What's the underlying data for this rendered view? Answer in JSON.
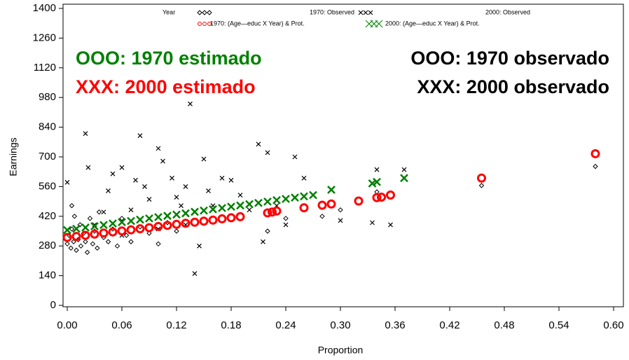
{
  "chart_data": {
    "type": "scatter",
    "x_label": "Proportion",
    "y_label": "Earnings",
    "legend_title": "Year",
    "xlim": [
      0,
      0.6
    ],
    "ylim": [
      0,
      1400
    ],
    "xticks": [
      {
        "value": 0,
        "label": "0.00"
      },
      {
        "value": 0.06,
        "label": "0.06"
      },
      {
        "value": 0.12,
        "label": "0.12"
      },
      {
        "value": 0.18,
        "label": "0.18"
      },
      {
        "value": 0.24,
        "label": "0.24"
      },
      {
        "value": 0.3,
        "label": "0.30"
      },
      {
        "value": 0.36,
        "label": "0.36"
      },
      {
        "value": 0.42,
        "label": "0.42"
      },
      {
        "value": 0.48,
        "label": "0.48"
      },
      {
        "value": 0.54,
        "label": "0.54"
      },
      {
        "value": 0.6,
        "label": "0.60"
      }
    ],
    "yticks": [
      0,
      140,
      280,
      420,
      560,
      700,
      840,
      980,
      1120,
      1260,
      1400
    ],
    "annotations": [
      {
        "text": "OOO: 1970 estimado",
        "color": "#008000"
      },
      {
        "text": "XXX: 2000 estimado",
        "color": "#ff0000"
      },
      {
        "text": "OOO: 1970 observado",
        "color": "#000000"
      },
      {
        "text": "XXX: 2000 observado",
        "color": "#000000"
      }
    ],
    "series": [
      {
        "name": "1970: Observed",
        "color": "#000000",
        "marker": "diamond",
        "x": [
          0,
          0.002,
          0.004,
          0.005,
          0.007,
          0.008,
          0.01,
          0.012,
          0.014,
          0.015,
          0.018,
          0.02,
          0.022,
          0.025,
          0.028,
          0.03,
          0.033,
          0.035,
          0.04,
          0.045,
          0.05,
          0.055,
          0.06,
          0.065,
          0.07,
          0.08,
          0.09,
          0.1,
          0.11,
          0.12,
          0.005,
          0.22,
          0.24,
          0.28,
          0.3,
          0.34,
          0.455,
          0.58
        ],
        "values": [
          290,
          330,
          270,
          360,
          300,
          420,
          260,
          310,
          380,
          280,
          340,
          300,
          250,
          410,
          290,
          350,
          270,
          440,
          320,
          300,
          360,
          280,
          410,
          330,
          300,
          370,
          340,
          290,
          390,
          350,
          470,
          350,
          410,
          420,
          450,
          535,
          565,
          655
        ]
      },
      {
        "name": "2000: Observed",
        "color": "#000000",
        "marker": "x",
        "x": [
          0,
          0.02,
          0.023,
          0.03,
          0.04,
          0.045,
          0.05,
          0.06,
          0.06,
          0.07,
          0.075,
          0.08,
          0.085,
          0.09,
          0.1,
          0.1,
          0.105,
          0.11,
          0.115,
          0.12,
          0.125,
          0.13,
          0.13,
          0.135,
          0.14,
          0.145,
          0.15,
          0.155,
          0.16,
          0.17,
          0.18,
          0.19,
          0.2,
          0.21,
          0.215,
          0.22,
          0.23,
          0.24,
          0.25,
          0.26,
          0.27,
          0.3,
          0.335,
          0.34,
          0.355,
          0.37
        ],
        "values": [
          580,
          810,
          650,
          380,
          440,
          540,
          620,
          650,
          330,
          450,
          590,
          800,
          560,
          500,
          740,
          360,
          680,
          420,
          600,
          510,
          470,
          560,
          380,
          950,
          150,
          280,
          690,
          540,
          470,
          600,
          590,
          520,
          450,
          760,
          300,
          720,
          470,
          380,
          700,
          600,
          520,
          400,
          390,
          640,
          380,
          640
        ]
      },
      {
        "name": "1970: (Age—educ X Year) & Prot.",
        "color": "#ff0000",
        "marker": "circle",
        "x": [
          0,
          0.01,
          0.02,
          0.03,
          0.04,
          0.05,
          0.06,
          0.07,
          0.08,
          0.09,
          0.1,
          0.11,
          0.12,
          0.13,
          0.14,
          0.15,
          0.16,
          0.17,
          0.18,
          0.19,
          0.22,
          0.225,
          0.23,
          0.26,
          0.28,
          0.29,
          0.32,
          0.34,
          0.345,
          0.355,
          0.455,
          0.58
        ],
        "values": [
          320,
          325,
          330,
          336,
          341,
          346,
          351,
          356,
          361,
          366,
          372,
          377,
          382,
          387,
          392,
          397,
          402,
          408,
          413,
          418,
          436,
          440,
          445,
          460,
          472,
          478,
          492,
          508,
          510,
          520,
          600,
          715
        ]
      },
      {
        "name": "2000: (Age—educ X Year) & Prot.",
        "color": "#008000",
        "marker": "x",
        "x": [
          0,
          0.01,
          0.02,
          0.03,
          0.04,
          0.05,
          0.06,
          0.07,
          0.08,
          0.09,
          0.1,
          0.11,
          0.12,
          0.13,
          0.14,
          0.15,
          0.16,
          0.17,
          0.18,
          0.19,
          0.2,
          0.21,
          0.22,
          0.23,
          0.24,
          0.25,
          0.26,
          0.27,
          0.29,
          0.335,
          0.34,
          0.37
        ],
        "values": [
          355,
          361,
          367,
          373,
          379,
          386,
          392,
          398,
          404,
          410,
          416,
          422,
          428,
          434,
          441,
          447,
          453,
          459,
          465,
          471,
          477,
          483,
          489,
          496,
          502,
          508,
          514,
          520,
          545,
          575,
          582,
          600
        ]
      }
    ]
  }
}
